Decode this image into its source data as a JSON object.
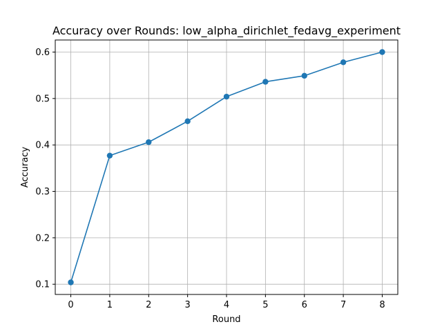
{
  "chart_data": {
    "type": "line",
    "title": "Accuracy over Rounds: low_alpha_dirichlet_fedavg_experiment",
    "xlabel": "Round",
    "ylabel": "Accuracy",
    "x": [
      0,
      1,
      2,
      3,
      4,
      5,
      6,
      7,
      8
    ],
    "series": [
      {
        "values": [
          0.104,
          0.377,
          0.406,
          0.451,
          0.504,
          0.536,
          0.549,
          0.578,
          0.6
        ]
      }
    ],
    "xlim": [
      -0.4,
      8.4
    ],
    "ylim": [
      0.078,
      0.626
    ],
    "x_ticks": [
      "0",
      "1",
      "2",
      "3",
      "4",
      "5",
      "6",
      "7",
      "8"
    ],
    "y_ticks": [
      "0.1",
      "0.2",
      "0.3",
      "0.4",
      "0.5",
      "0.6"
    ],
    "grid": true,
    "line_color": "#1f77b4",
    "marker": "circle"
  }
}
